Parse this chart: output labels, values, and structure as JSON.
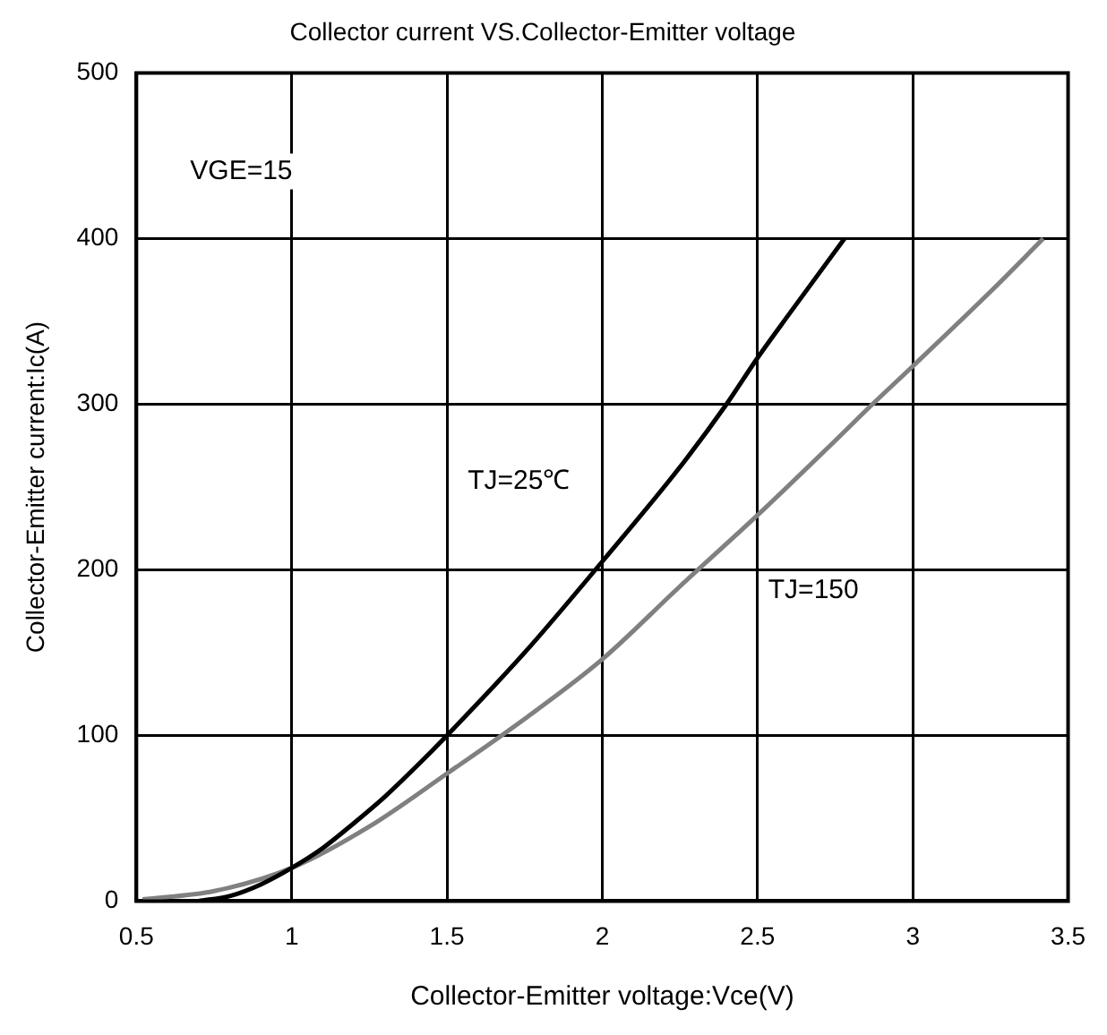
{
  "chart_data": {
    "type": "line",
    "title": "Collector current VS.Collector-Emitter voltage",
    "xlabel": "Collector-Emitter voltage:Vce(V)",
    "ylabel": "Collector-Emitter current:Ic(A)",
    "series": [
      {
        "name": "TJ=25℃",
        "color": "#000000",
        "x": [
          0.7,
          0.8,
          0.9,
          1.0,
          1.1,
          1.2,
          1.3,
          1.4,
          1.5,
          1.75,
          2.0,
          2.25,
          2.4,
          2.5,
          2.6,
          2.78
        ],
        "values": [
          0,
          3,
          10,
          20,
          32,
          47,
          63,
          81,
          100,
          150,
          205,
          262,
          300,
          328,
          354,
          400
        ]
      },
      {
        "name": "TJ=150",
        "color": "#808080",
        "x": [
          0.52,
          0.75,
          1.0,
          1.25,
          1.5,
          1.75,
          2.0,
          2.25,
          2.5,
          2.75,
          2.87,
          3.0,
          3.25,
          3.42
        ],
        "values": [
          1,
          6,
          20,
          45,
          77,
          110,
          146,
          190,
          233,
          278,
          300,
          323,
          368,
          400
        ]
      }
    ],
    "xlim": [
      0.5,
      3.5
    ],
    "xticks": [
      0.5,
      1,
      1.5,
      2,
      2.5,
      3,
      3.5
    ],
    "ylim": [
      0,
      500
    ],
    "yticks": [
      0,
      100,
      200,
      300,
      400,
      500
    ],
    "grid": true,
    "legend": false,
    "marker": "none",
    "line_style": "solid",
    "annotations": [
      "VGE=15"
    ]
  }
}
